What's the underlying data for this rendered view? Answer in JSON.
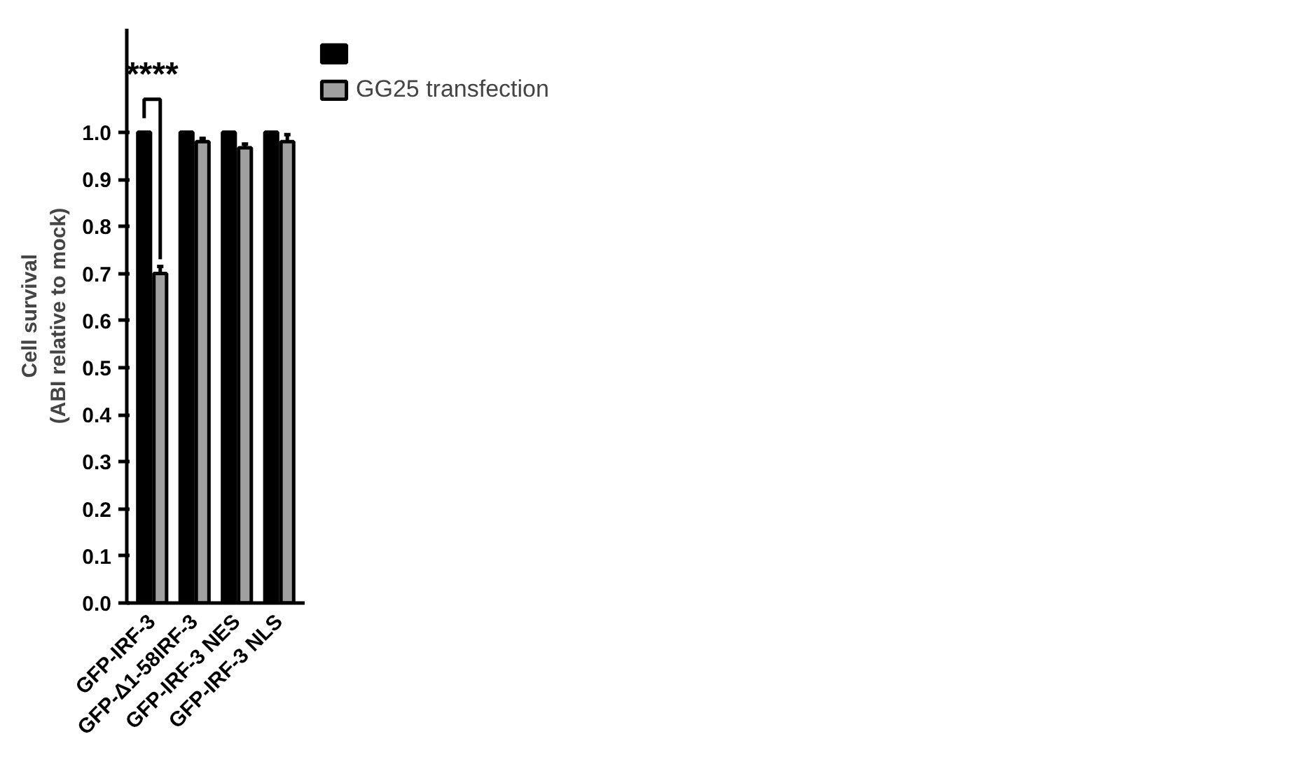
{
  "chart_data": {
    "type": "bar",
    "ylabel": "Cell survival\n(ABI relative to mock)",
    "categories": [
      "GFP-IRF-3",
      "GFP-Δ1-58IRF-3",
      "GFP-IRF-3 NES",
      "GFP-IRF-3 NLS"
    ],
    "series": [
      {
        "color": "#000000",
        "values": [
          1.0,
          1.0,
          1.0,
          1.0
        ]
      },
      {
        "name": "GG25 transfection",
        "color": "#a0a0a0",
        "values": [
          0.7,
          0.98,
          0.967,
          0.98
        ],
        "errors": [
          [
            0.7,
            0.715
          ],
          [
            0.98,
            0.987
          ],
          [
            0.967,
            0.975
          ],
          [
            0.98,
            0.995
          ]
        ]
      }
    ],
    "ylim": [
      0,
      1.22
    ],
    "yticks": [
      {
        "value": 0,
        "label": "0.0"
      },
      {
        "value": 0.1,
        "label": "0.1"
      },
      {
        "value": 0.2,
        "label": "0.2"
      },
      {
        "value": 0.3,
        "label": "0.3"
      },
      {
        "value": 0.4,
        "label": "0.4"
      },
      {
        "value": 0.5,
        "label": "0.5"
      },
      {
        "value": 0.6,
        "label": "0.6"
      },
      {
        "value": 0.7,
        "label": "0.7"
      },
      {
        "value": 0.8,
        "label": "0.8"
      },
      {
        "value": 0.9,
        "label": "0.9"
      },
      {
        "value": 1.0,
        "label": "1.0"
      }
    ],
    "annotations": [
      "****"
    ],
    "grid": false,
    "legend": "right"
  }
}
